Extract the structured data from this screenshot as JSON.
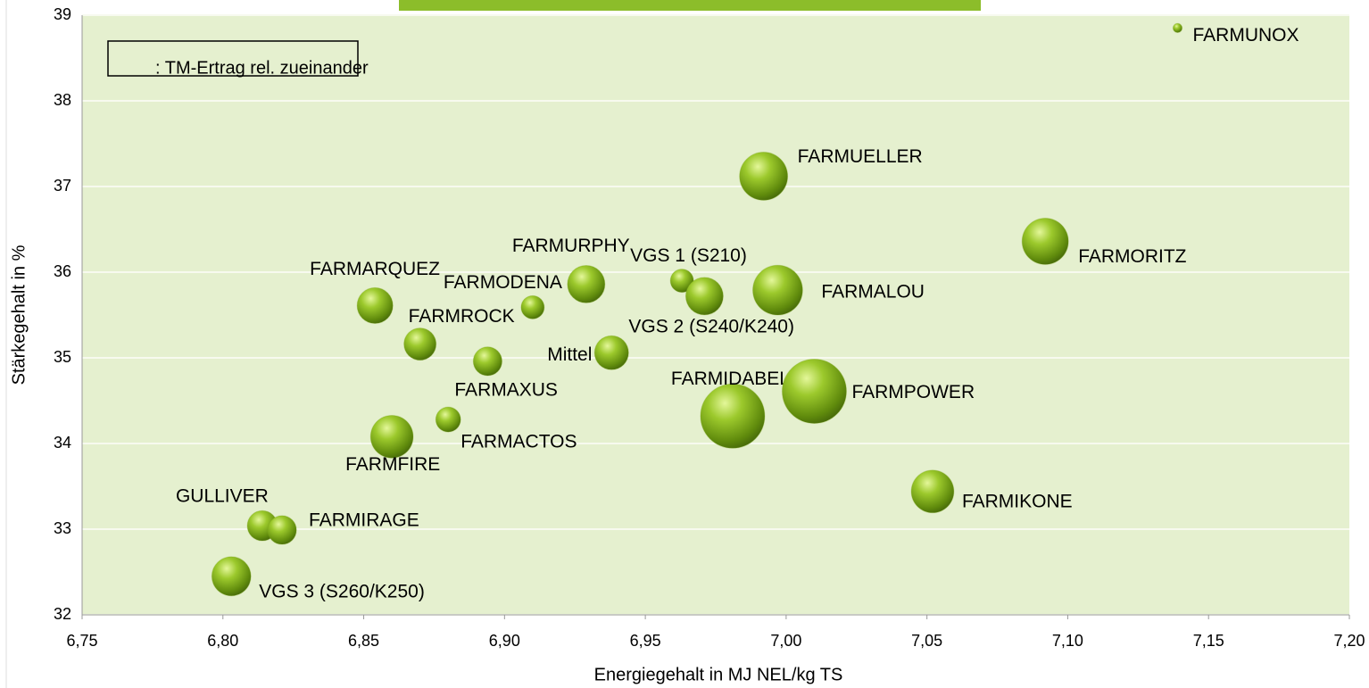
{
  "chart_data": {
    "type": "bubble",
    "xlabel": "Energiegehalt in MJ NEL/kg TS",
    "ylabel": "Stärkegehalt in %",
    "legend_note": ": TM-Ertrag rel. zueinander",
    "color": "#7aa61a",
    "labels": [
      "FARMUNOX",
      "FARMUELLER",
      "FARMORITZ",
      "FARMURPHY",
      "VGS 1 (S210)",
      "VGS 2 (S240/K240)",
      "FARMALOU",
      "FARMARQUEZ",
      "FARMODENA",
      "FARMROCK",
      "Mittel",
      "FARMAXUS",
      "FARMIDABEL",
      "FARMPOWER",
      "FARMACTOS",
      "FARMFIRE",
      "FARMIKONE",
      "GULLIVER",
      "FARMIRAGE",
      "VGS 3 (S260/K250)"
    ],
    "x": [
      7.139,
      6.992,
      7.092,
      6.929,
      6.963,
      6.971,
      6.997,
      6.854,
      6.91,
      6.87,
      6.938,
      6.894,
      6.981,
      7.01,
      6.88,
      6.86,
      7.052,
      6.814,
      6.821,
      6.803
    ],
    "values": [
      38.85,
      37.12,
      36.36,
      35.86,
      35.9,
      35.72,
      35.79,
      35.61,
      35.59,
      35.16,
      35.06,
      34.96,
      34.32,
      34.61,
      34.28,
      34.08,
      33.44,
      33.04,
      32.99,
      32.45
    ],
    "sizes": [
      2,
      56,
      52,
      34,
      13,
      34,
      60,
      31,
      13,
      25,
      28,
      20,
      100,
      100,
      15,
      44,
      44,
      22,
      20,
      37
    ],
    "xlim": [
      6.75,
      7.2
    ],
    "xticks": [
      {
        "value": 6.75,
        "label": "6,75"
      },
      {
        "value": 6.8,
        "label": "6,80"
      },
      {
        "value": 6.85,
        "label": "6,85"
      },
      {
        "value": 6.9,
        "label": "6,90"
      },
      {
        "value": 6.95,
        "label": "6,95"
      },
      {
        "value": 7.0,
        "label": "7,00"
      },
      {
        "value": 7.05,
        "label": "7,05"
      },
      {
        "value": 7.1,
        "label": "7,10"
      },
      {
        "value": 7.15,
        "label": "7,15"
      },
      {
        "value": 7.2,
        "label": "7,20"
      }
    ],
    "ylim": [
      32,
      39
    ],
    "yticks": [
      32,
      33,
      34,
      35,
      36,
      37,
      38,
      39
    ],
    "grid": true
  }
}
